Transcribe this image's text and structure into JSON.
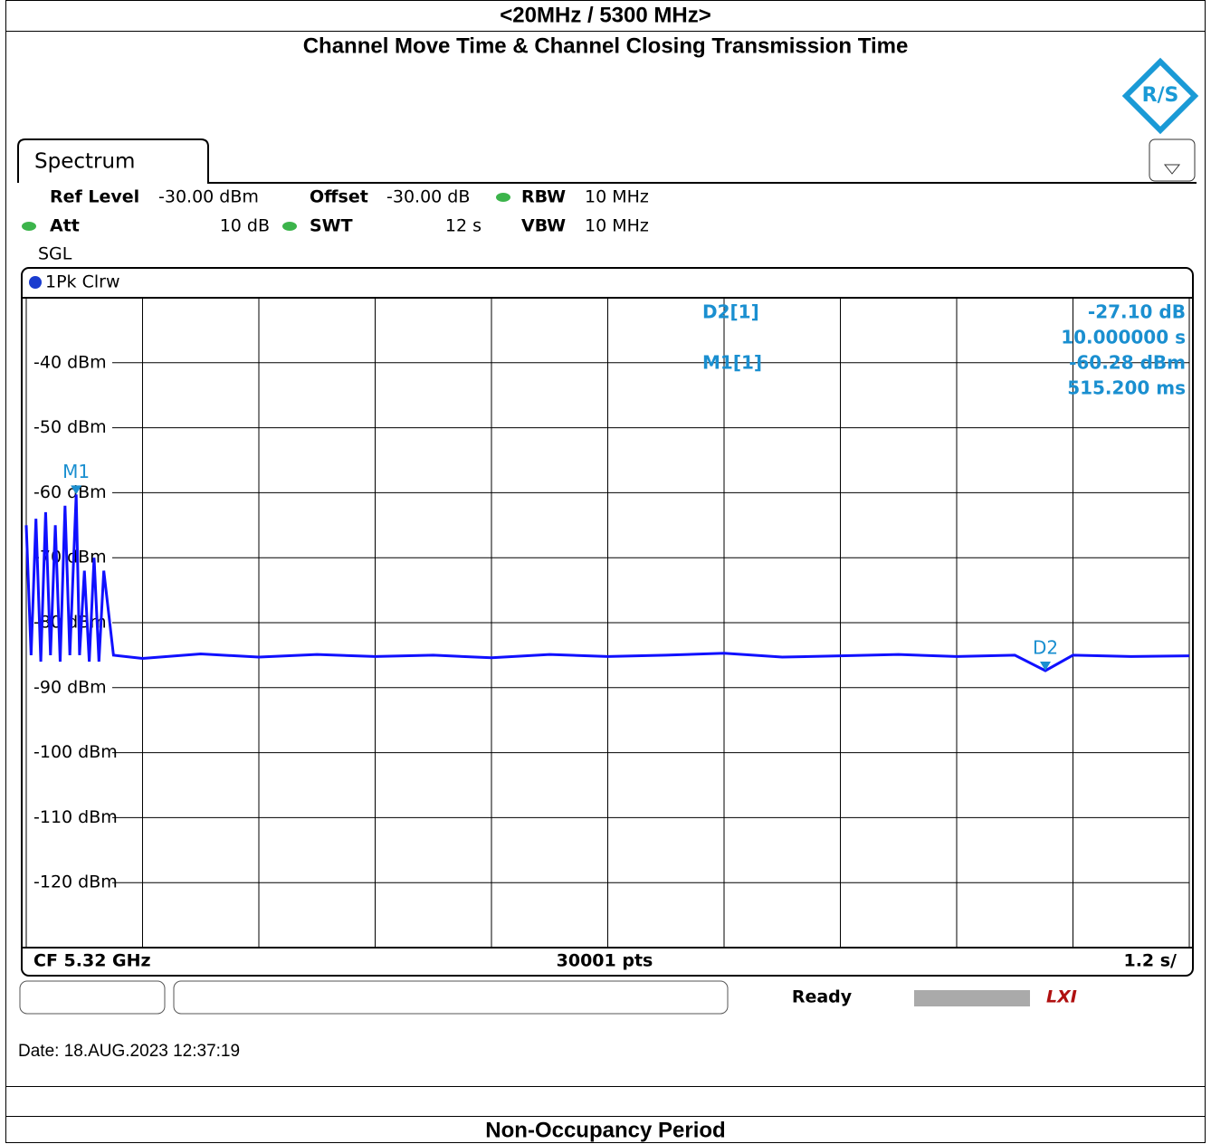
{
  "header": {
    "band": "<20MHz / 5300 MHz>",
    "title": "Channel Move Time & Channel Closing Transmission Time",
    "next_section": "Non-Occupancy Period"
  },
  "tab": "Spectrum",
  "settings": {
    "ref_level_label": "Ref Level",
    "ref_level": "-30.00 dBm",
    "offset_label": "Offset",
    "offset": "-30.00 dB",
    "rbw_label": "RBW",
    "rbw": "10 MHz",
    "att_label": "Att",
    "att": "10 dB",
    "swt_label": "SWT",
    "swt": "12 s",
    "vbw_label": "VBW",
    "vbw": "10 MHz",
    "mode": "SGL",
    "trace_mode": "1Pk Clrw"
  },
  "marker_table": [
    {
      "name": "D2[1]",
      "value": "-27.10 dB",
      "position": "10.000000 s"
    },
    {
      "name": "M1[1]",
      "value": "-60.28 dBm",
      "position": "515.200 ms"
    }
  ],
  "chart_data": {
    "type": "line",
    "xlim": [
      0,
      12
    ],
    "ylim": [
      -130,
      -30
    ],
    "xticks": [
      0,
      1.2,
      2.4,
      3.6,
      4.8,
      6,
      7.2,
      8.4,
      9.6,
      10.8,
      12
    ],
    "yticks": [
      {
        "value": -40,
        "label": "-40 dBm"
      },
      {
        "value": -50,
        "label": "-50 dBm"
      },
      {
        "value": -60,
        "label": "-60 dBm"
      },
      {
        "value": -70,
        "label": "-70 dBm"
      },
      {
        "value": -80,
        "label": "-80 dBm"
      },
      {
        "value": -90,
        "label": "-90 dBm"
      },
      {
        "value": -100,
        "label": "-100 dBm"
      },
      {
        "value": -110,
        "label": "-110 dBm"
      },
      {
        "value": -120,
        "label": "-120 dBm"
      }
    ],
    "grid": true,
    "series": [
      {
        "name": "1",
        "color": "#1010ff",
        "x": [
          0,
          0.05,
          0.1,
          0.15,
          0.2,
          0.25,
          0.3,
          0.35,
          0.4,
          0.45,
          0.5152,
          0.55,
          0.6,
          0.65,
          0.7,
          0.75,
          0.8,
          0.9,
          1.2,
          1.8,
          2.4,
          3,
          3.6,
          4.2,
          4.8,
          5.4,
          6,
          6.6,
          7.2,
          7.8,
          8.4,
          9,
          9.6,
          10.2,
          10.5152,
          10.8,
          11.4,
          12
        ],
        "values": [
          -65,
          -85,
          -64,
          -86,
          -63,
          -85,
          -65,
          -86,
          -62,
          -85,
          -60.28,
          -85,
          -72,
          -86,
          -70,
          -86,
          -72,
          -85,
          -85.5,
          -84.8,
          -85.3,
          -84.9,
          -85.2,
          -85,
          -85.4,
          -84.9,
          -85.2,
          -85,
          -84.7,
          -85.3,
          -85.1,
          -84.9,
          -85.2,
          -85,
          -87.38,
          -85,
          -85.2,
          -85.1
        ]
      }
    ],
    "markers": [
      {
        "name": "M1",
        "x": 0.5152,
        "y": -60.28
      },
      {
        "name": "D2",
        "x": 10.5152,
        "y": -87.38
      }
    ]
  },
  "footer": {
    "center_freq": "CF 5.32 GHz",
    "points": "30001 pts",
    "span": "1.2 s/",
    "status": "Ready",
    "date": "Date: 18.AUG.2023  12:37:19"
  }
}
